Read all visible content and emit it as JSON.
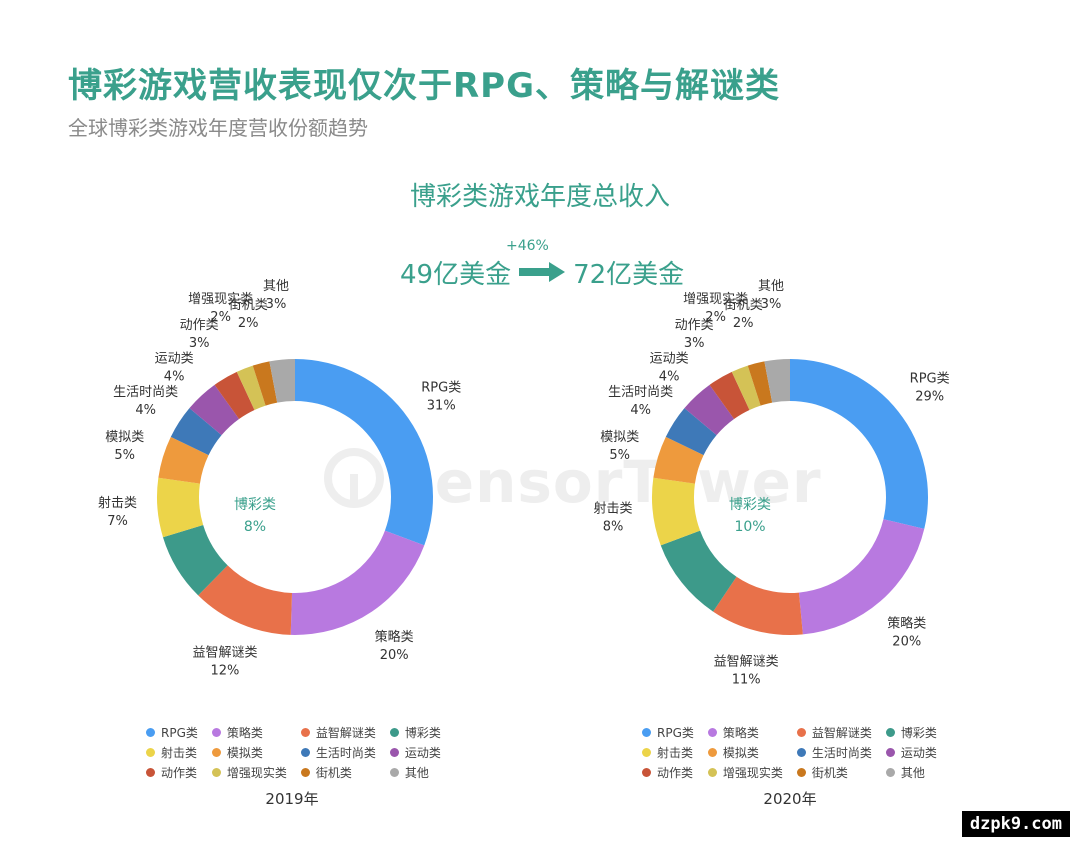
{
  "header": {
    "title": "博彩游戏营收表现仅次于RPG、策略与解谜类",
    "subtitle": "全球博彩类游戏年度营收份额趋势"
  },
  "revenue": {
    "title": "博彩类游戏年度总收入",
    "from": "49亿美金",
    "to": "72亿美金",
    "growth": "+46%",
    "arrow_icon": "right-arrow-icon"
  },
  "watermark": {
    "text": "SensorTower"
  },
  "site_badge": "dzpk9.com",
  "colors": {
    "accent": "#3aa08c"
  },
  "chart_data": [
    {
      "type": "donut",
      "year_label": "2019年",
      "center_label": "博彩类",
      "center_value": "8%",
      "categories": [
        "RPG类",
        "策略类",
        "益智解谜类",
        "博彩类",
        "射击类",
        "模拟类",
        "生活时尚类",
        "运动类",
        "动作类",
        "增强现实类",
        "街机类",
        "其他"
      ],
      "values": [
        31,
        20,
        12,
        8,
        7,
        5,
        4,
        4,
        3,
        2,
        2,
        3
      ],
      "labels": [
        "31%",
        "20%",
        "12%",
        "8%",
        "7%",
        "5%",
        "4%",
        "4%",
        "3%",
        "2%",
        "2%",
        "3%"
      ]
    },
    {
      "type": "donut",
      "year_label": "2020年",
      "center_label": "博彩类",
      "center_value": "10%",
      "categories": [
        "RPG类",
        "策略类",
        "益智解谜类",
        "博彩类",
        "射击类",
        "模拟类",
        "生活时尚类",
        "运动类",
        "动作类",
        "增强现实类",
        "街机类",
        "其他"
      ],
      "values": [
        29,
        20,
        11,
        10,
        8,
        5,
        4,
        4,
        3,
        2,
        2,
        3
      ],
      "labels": [
        "29%",
        "20%",
        "11%",
        "10%",
        "8%",
        "5%",
        "4%",
        "4%",
        "3%",
        "2%",
        "2%",
        "3%"
      ]
    }
  ],
  "series_colors": [
    "#4a9df2",
    "#b879e0",
    "#e8714a",
    "#3d9a8a",
    "#ecd449",
    "#ee9a3d",
    "#3e79b8",
    "#9a56ac",
    "#c85438",
    "#d4c256",
    "#c9781e",
    "#a9a9a9"
  ]
}
